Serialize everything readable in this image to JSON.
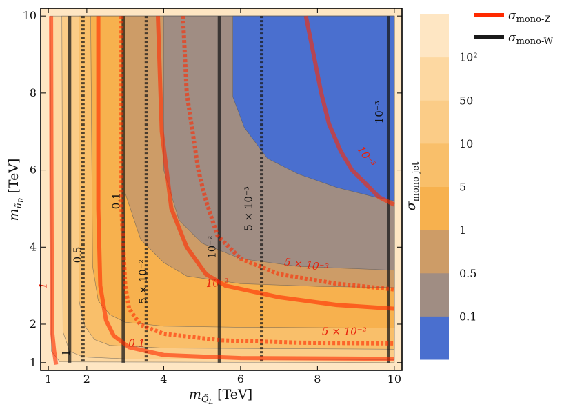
{
  "chart_data": {
    "type": "contour",
    "xlabel": "m",
    "xlabel_sub": "Q̃",
    "xlabel_subsub": "L",
    "xlabel_unit": "[TeV]",
    "ylabel": "m",
    "ylabel_sub": "ũ",
    "ylabel_subsub": "R",
    "ylabel_unit": "[TeV]",
    "xlim": [
      0.8,
      10.2
    ],
    "ylim": [
      0.8,
      10.2
    ],
    "xticks": [
      "1",
      "2",
      "4",
      "6",
      "8",
      "10"
    ],
    "xtick_values": [
      1,
      2,
      4,
      6,
      8,
      10
    ],
    "yticks": [
      "1",
      "2",
      "4",
      "6",
      "8",
      "10"
    ],
    "ytick_values": [
      1,
      2,
      4,
      6,
      8,
      10
    ],
    "colorbar": {
      "label": "σ",
      "label_sub": "mono-jet",
      "ticks": [
        "0.1",
        "0.5",
        "1",
        "5",
        "10",
        "50",
        "10²"
      ],
      "bands": [
        "#4a6fcf",
        "#a08d83",
        "#cd9c67",
        "#f7b14e",
        "#f9bf6a",
        "#fbcc87",
        "#fdd8a1",
        "#fee6c3"
      ]
    },
    "filled_regions": [
      {
        "level": "0.1",
        "color": "#4a6fcf",
        "boundary": [
          [
            5.8,
            10
          ],
          [
            5.8,
            7.9
          ],
          [
            6.1,
            7.1
          ],
          [
            6.7,
            6.3
          ],
          [
            7.5,
            5.9
          ],
          [
            8.5,
            5.55
          ],
          [
            9.5,
            5.3
          ],
          [
            10,
            5.2
          ],
          [
            10,
            10
          ]
        ]
      },
      {
        "level": "0.5",
        "color": "#a08d83",
        "boundary": [
          [
            4.0,
            10
          ],
          [
            4.0,
            6.0
          ],
          [
            4.4,
            4.7
          ],
          [
            5.0,
            4.1
          ],
          [
            6.0,
            3.7
          ],
          [
            7.5,
            3.5
          ],
          [
            10,
            3.4
          ],
          [
            10,
            10
          ]
        ]
      },
      {
        "level": "1",
        "color": "#cd9c67",
        "boundary": [
          [
            3.0,
            10
          ],
          [
            3.0,
            5.4
          ],
          [
            3.4,
            4.2
          ],
          [
            4.0,
            3.6
          ],
          [
            4.6,
            3.25
          ],
          [
            6.0,
            3.05
          ],
          [
            8.0,
            2.98
          ],
          [
            10,
            2.95
          ],
          [
            10,
            10
          ]
        ]
      },
      {
        "level": "5",
        "color": "#f7b14e",
        "boundary": [
          [
            2.1,
            10
          ],
          [
            2.15,
            3.5
          ],
          [
            2.3,
            2.6
          ],
          [
            2.6,
            2.25
          ],
          [
            3.0,
            2.05
          ],
          [
            4.0,
            1.95
          ],
          [
            6.0,
            1.92
          ],
          [
            10,
            1.9
          ],
          [
            10,
            10
          ]
        ]
      },
      {
        "level": "10",
        "color": "#f9bf6a",
        "boundary": [
          [
            1.8,
            10
          ],
          [
            1.8,
            2.6
          ],
          [
            1.95,
            1.95
          ],
          [
            2.2,
            1.6
          ],
          [
            2.6,
            1.45
          ],
          [
            4.0,
            1.38
          ],
          [
            10,
            1.35
          ],
          [
            10,
            10
          ]
        ]
      },
      {
        "level": "50",
        "color": "#fbcc87",
        "boundary": [
          [
            1.35,
            10
          ],
          [
            1.38,
            1.8
          ],
          [
            1.55,
            1.3
          ],
          [
            1.9,
            1.15
          ],
          [
            3.0,
            1.1
          ],
          [
            10,
            1.08
          ],
          [
            10,
            10
          ]
        ]
      },
      {
        "level": "10²",
        "color": "#fdd8a1",
        "boundary": [
          [
            1.05,
            10
          ],
          [
            1.08,
            1.3
          ],
          [
            1.3,
            1.02
          ],
          [
            10,
            1.0
          ],
          [
            10,
            10
          ]
        ]
      }
    ],
    "series": [
      {
        "name": "σ",
        "name_sub": "mono-Z",
        "color": "#ff2a00",
        "width": 6,
        "contours": [
          {
            "label": "1",
            "dash": false,
            "points": [
              [
                1.07,
                10
              ],
              [
                1.08,
                6
              ],
              [
                1.09,
                3
              ],
              [
                1.1,
                1.8
              ],
              [
                1.15,
                1.3
              ],
              [
                1.2,
                0.95
              ]
            ]
          },
          {
            "label": "0.1",
            "dash": false,
            "points": [
              [
                2.3,
                10
              ],
              [
                2.3,
                5
              ],
              [
                2.35,
                3
              ],
              [
                2.5,
                2.1
              ],
              [
                2.7,
                1.7
              ],
              [
                3.1,
                1.4
              ],
              [
                4.0,
                1.2
              ],
              [
                6.0,
                1.12
              ],
              [
                10,
                1.1
              ]
            ]
          },
          {
            "label": "5 × 10⁻²",
            "dash": true,
            "points": [
              [
                2.9,
                10
              ],
              [
                2.9,
                5
              ],
              [
                3.0,
                3
              ],
              [
                3.1,
                2.4
              ],
              [
                3.4,
                1.98
              ],
              [
                4.0,
                1.75
              ],
              [
                5.5,
                1.58
              ],
              [
                7.5,
                1.52
              ],
              [
                10,
                1.5
              ]
            ]
          },
          {
            "label": "10⁻²",
            "dash": false,
            "points": [
              [
                3.85,
                10
              ],
              [
                3.95,
                7
              ],
              [
                4.2,
                5
              ],
              [
                4.6,
                4.0
              ],
              [
                5.1,
                3.3
              ],
              [
                5.6,
                3.0
              ],
              [
                7.0,
                2.7
              ],
              [
                8.5,
                2.5
              ],
              [
                10,
                2.4
              ]
            ]
          },
          {
            "label": "5 × 10⁻³",
            "dash": true,
            "points": [
              [
                4.5,
                10
              ],
              [
                4.6,
                8
              ],
              [
                4.9,
                6
              ],
              [
                5.1,
                5.2
              ],
              [
                5.4,
                4.3
              ],
              [
                6.0,
                3.7
              ],
              [
                7.0,
                3.3
              ],
              [
                8.5,
                3.05
              ],
              [
                10,
                2.9
              ]
            ]
          },
          {
            "label": "10⁻³",
            "dash": false,
            "points": [
              [
                7.7,
                10
              ],
              [
                7.9,
                9
              ],
              [
                8.1,
                8
              ],
              [
                8.3,
                7.2
              ],
              [
                8.6,
                6.5
              ],
              [
                8.9,
                6.0
              ],
              [
                9.2,
                5.7
              ],
              [
                9.6,
                5.3
              ],
              [
                10,
                5.1
              ]
            ]
          }
        ]
      },
      {
        "name": "σ",
        "name_sub": "mono-W",
        "color": "#1a1a1a",
        "width": 5,
        "contours": [
          {
            "label": "1",
            "dash": false,
            "x": 1.55
          },
          {
            "label": "0.5",
            "dash": true,
            "x": 1.9
          },
          {
            "label": "0.1",
            "dash": false,
            "x": 2.95
          },
          {
            "label": "5 × 10⁻²",
            "dash": true,
            "x": 3.55
          },
          {
            "label": "10⁻²",
            "dash": false,
            "x": 5.45
          },
          {
            "label": "5 × 10⁻³",
            "dash": true,
            "x": 6.55
          },
          {
            "label": "10⁻³",
            "dash": false,
            "x": 9.85
          }
        ]
      }
    ]
  }
}
